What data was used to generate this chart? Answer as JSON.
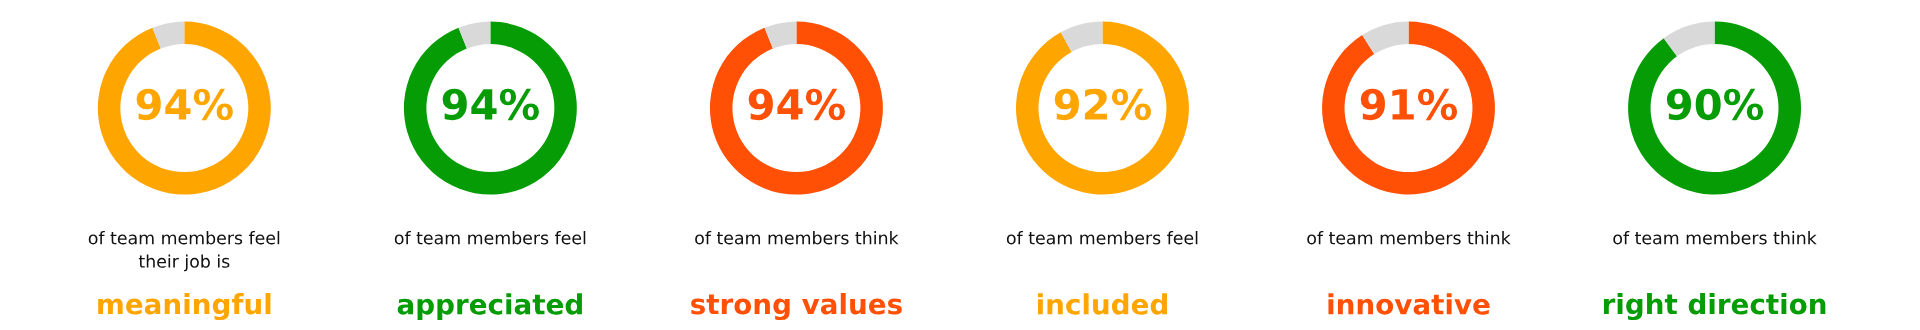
{
  "chart_data": [
    {
      "type": "donut",
      "categories": [
        null,
        null
      ],
      "values": [
        94,
        6
      ],
      "colors": [
        "#ffa500",
        "#d9d9d9"
      ],
      "value_labels": [
        "94%",
        null
      ],
      "annotations": [
        "of team members feel\ntheir job is",
        "meaningful"
      ]
    },
    {
      "type": "donut",
      "categories": [
        null,
        null
      ],
      "values": [
        94,
        6
      ],
      "colors": [
        "#069c06",
        "#d9d9d9"
      ],
      "value_labels": [
        "94%",
        null
      ],
      "annotations": [
        "of team members feel",
        "appreciated"
      ]
    },
    {
      "type": "donut",
      "categories": [
        null,
        null
      ],
      "values": [
        94,
        6
      ],
      "colors": [
        "#ff5005",
        "#d9d9d9"
      ],
      "value_labels": [
        "94%",
        null
      ],
      "annotations": [
        "of team members think",
        "strong values"
      ]
    },
    {
      "type": "donut",
      "categories": [
        null,
        null
      ],
      "values": [
        92,
        8
      ],
      "colors": [
        "#ffa500",
        "#d9d9d9"
      ],
      "value_labels": [
        "92%",
        null
      ],
      "annotations": [
        "of team members feel",
        "included"
      ]
    },
    {
      "type": "donut",
      "categories": [
        null,
        null
      ],
      "values": [
        91,
        9
      ],
      "colors": [
        "#ff5005",
        "#d9d9d9"
      ],
      "value_labels": [
        "91%",
        null
      ],
      "annotations": [
        "of team members think",
        "innovative"
      ]
    },
    {
      "type": "donut",
      "categories": [
        null,
        null
      ],
      "values": [
        90,
        10
      ],
      "colors": [
        "#069c06",
        "#d9d9d9"
      ],
      "value_labels": [
        "90%",
        null
      ],
      "annotations": [
        "of team members think",
        "right direction"
      ]
    }
  ]
}
